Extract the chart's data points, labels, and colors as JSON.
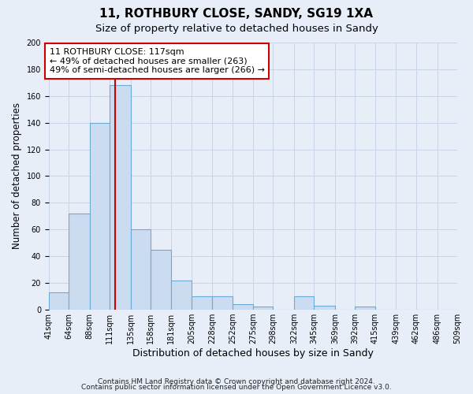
{
  "title": "11, ROTHBURY CLOSE, SANDY, SG19 1XA",
  "subtitle": "Size of property relative to detached houses in Sandy",
  "xlabel": "Distribution of detached houses by size in Sandy",
  "ylabel": "Number of detached properties",
  "footnote1": "Contains HM Land Registry data © Crown copyright and database right 2024.",
  "footnote2": "Contains public sector information licensed under the Open Government Licence v3.0.",
  "bin_edges": [
    41,
    64,
    88,
    111,
    135,
    158,
    181,
    205,
    228,
    252,
    275,
    298,
    322,
    345,
    369,
    392,
    415,
    439,
    462,
    486,
    509
  ],
  "bar_heights": [
    13,
    72,
    140,
    168,
    60,
    45,
    22,
    10,
    10,
    4,
    2,
    0,
    10,
    3,
    0,
    2,
    0,
    0,
    0,
    0
  ],
  "bar_color": "#ccdcf0",
  "bar_edgecolor": "#6aaad4",
  "bar_linewidth": 0.8,
  "redline_x": 117,
  "annotation_title": "11 ROTHBURY CLOSE: 117sqm",
  "annotation_line1": "← 49% of detached houses are smaller (263)",
  "annotation_line2": "49% of semi-detached houses are larger (266) →",
  "annotation_box_color": "white",
  "annotation_box_edgecolor": "#cc0000",
  "redline_color": "#cc0000",
  "ylim": [
    0,
    200
  ],
  "yticks": [
    0,
    20,
    40,
    60,
    80,
    100,
    120,
    140,
    160,
    180,
    200
  ],
  "tick_labels": [
    "41sqm",
    "64sqm",
    "88sqm",
    "111sqm",
    "135sqm",
    "158sqm",
    "181sqm",
    "205sqm",
    "228sqm",
    "252sqm",
    "275sqm",
    "298sqm",
    "322sqm",
    "345sqm",
    "369sqm",
    "392sqm",
    "415sqm",
    "439sqm",
    "462sqm",
    "486sqm",
    "509sqm"
  ],
  "grid_color": "#c8d4e8",
  "background_color": "#e8eef8",
  "title_fontsize": 11,
  "subtitle_fontsize": 9.5,
  "xlabel_fontsize": 9,
  "ylabel_fontsize": 8.5,
  "tick_fontsize": 7,
  "annotation_fontsize": 8,
  "footnote_fontsize": 6.5
}
